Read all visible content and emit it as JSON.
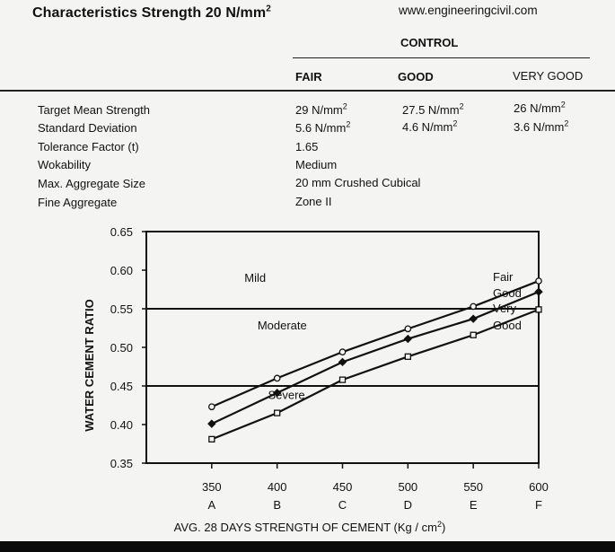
{
  "header": {
    "title": "Characteristics Strength 20 N/mm",
    "title_sup": "2",
    "website": "www.engineeringcivil.com"
  },
  "table": {
    "group_header": "CONTROL",
    "columns": [
      "FAIR",
      "GOOD",
      "VERY GOOD"
    ],
    "rows": [
      {
        "label": "Target Mean Strength",
        "values": [
          "29 N/mm",
          "27.5 N/mm",
          "26 N/mm"
        ],
        "sups": [
          "2",
          "2",
          "2"
        ]
      },
      {
        "label": "Standard Deviation",
        "values": [
          "5.6 N/mm",
          "4.6 N/mm",
          "3.6 N/mm"
        ],
        "sups": [
          "2",
          "2",
          "2"
        ]
      },
      {
        "label": "Tolerance Factor (t)",
        "value": "1.65"
      },
      {
        "label": "Wokability",
        "value": "Medium"
      },
      {
        "label": "Max. Aggregate Size",
        "value": "20 mm Crushed Cubical"
      },
      {
        "label": "Fine Aggregate",
        "value": "Zone II"
      }
    ]
  },
  "chart_data": {
    "type": "line",
    "x": [
      350,
      400,
      450,
      500,
      550,
      600
    ],
    "x_letters": [
      "A",
      "B",
      "C",
      "D",
      "E",
      "F"
    ],
    "xlim": [
      300,
      600
    ],
    "ylim": [
      0.35,
      0.65
    ],
    "yticks": [
      "0.65",
      "0.60",
      "0.55",
      "0.50",
      "0.45",
      "0.40",
      "0.35"
    ],
    "xlabel": "AVG. 28 DAYS STRENGTH OF CEMENT (Kg / cm",
    "xlabel_sup": "2",
    "xlabel_end": ")",
    "ylabel": "WATER CEMENT RATIO",
    "grid": false,
    "exposure_lines": [
      0.55,
      0.45
    ],
    "region_labels": [
      {
        "text": "Mild",
        "x": 375,
        "y": 0.585
      },
      {
        "text": "Moderate",
        "x": 385,
        "y": 0.523
      },
      {
        "text": "Severe",
        "x": 393,
        "y": 0.433
      }
    ],
    "series": [
      {
        "name": "Fair",
        "marker": "circle",
        "values": [
          0.423,
          0.46,
          0.494,
          0.524,
          0.553,
          0.586
        ]
      },
      {
        "name": "Good",
        "marker": "diamond",
        "values": [
          0.401,
          0.441,
          0.481,
          0.511,
          0.537,
          0.572
        ]
      },
      {
        "name": "Very Good",
        "marker": "square",
        "values": [
          0.381,
          0.415,
          0.458,
          0.488,
          0.516,
          0.549
        ]
      }
    ],
    "legend": [
      "Fair",
      "Good",
      "Very",
      "Good"
    ]
  }
}
